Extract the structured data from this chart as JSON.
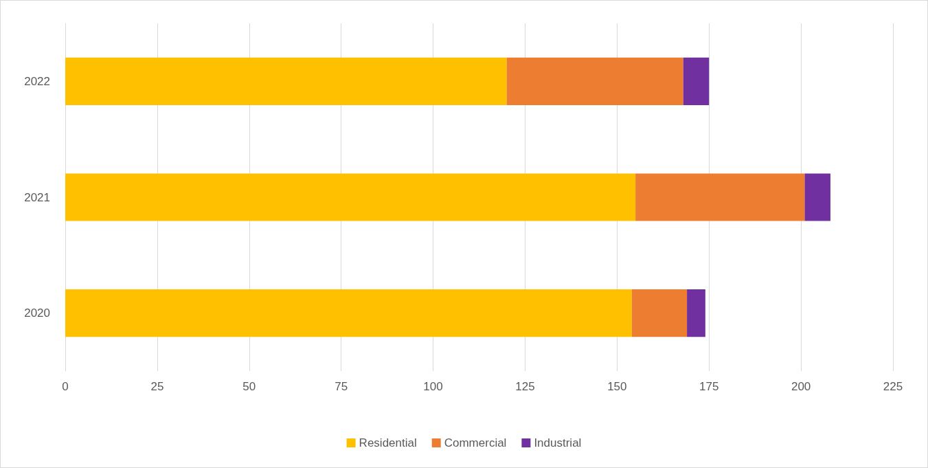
{
  "chart_data": {
    "type": "bar",
    "orientation": "horizontal",
    "stacked": true,
    "categories": [
      "2022",
      "2021",
      "2020"
    ],
    "series": [
      {
        "name": "Residential",
        "color": "#ffc000",
        "values": [
          120,
          155,
          154
        ]
      },
      {
        "name": "Commercial",
        "color": "#ed7d31",
        "values": [
          48,
          46,
          15
        ]
      },
      {
        "name": "Industrial",
        "color": "#7030a0",
        "values": [
          7,
          7,
          5
        ]
      }
    ],
    "xlim": [
      0,
      225
    ],
    "xticks": [
      0,
      25,
      50,
      75,
      100,
      125,
      150,
      175,
      200,
      225
    ],
    "grid": "x",
    "legend": "bottom"
  }
}
